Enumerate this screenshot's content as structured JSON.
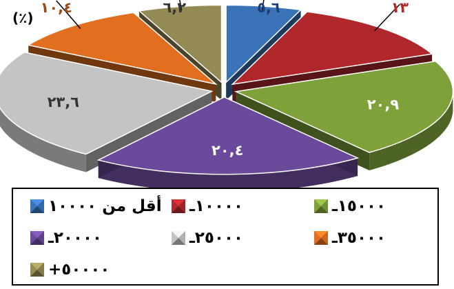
{
  "chart_data": {
    "type": "pie",
    "unit_label": "(٪)",
    "slices": [
      {
        "name": "أقل من ١٠٠٠٠",
        "value": 5.6,
        "label": "٥,٦",
        "color": "#3A73B8",
        "label_color": "#1F3F75"
      },
      {
        "name": "١٠٠٠٠ـ",
        "value": 13,
        "label": "١٣",
        "color": "#B0282C",
        "label_color": "#B0282C"
      },
      {
        "name": "١٥٠٠٠ـ",
        "value": 20.9,
        "label": "٢٠,٩",
        "color": "#7EA13A",
        "label_color": "#FFFFFF"
      },
      {
        "name": "٢٠٠٠٠ـ",
        "value": 20.4,
        "label": "٢٠,٤",
        "color": "#6C4A9B",
        "label_color": "#FFFFFF"
      },
      {
        "name": "٢٥٠٠٠ـ",
        "value": 23.6,
        "label": "٢٣,٦",
        "color": "#C4C4C4",
        "label_color": "#333333"
      },
      {
        "name": "٣٥٠٠٠ـ",
        "value": 10.4,
        "label": "١٠,٤",
        "color": "#E26F1F",
        "label_color": "#9A4A12"
      },
      {
        "name": "+٥٠٠٠٠",
        "value": 6.2,
        "label": "٦,٢",
        "color": "#948A54",
        "label_color": "#333333"
      }
    ],
    "legend": "bottom",
    "exploded": true,
    "style_3d": true
  }
}
